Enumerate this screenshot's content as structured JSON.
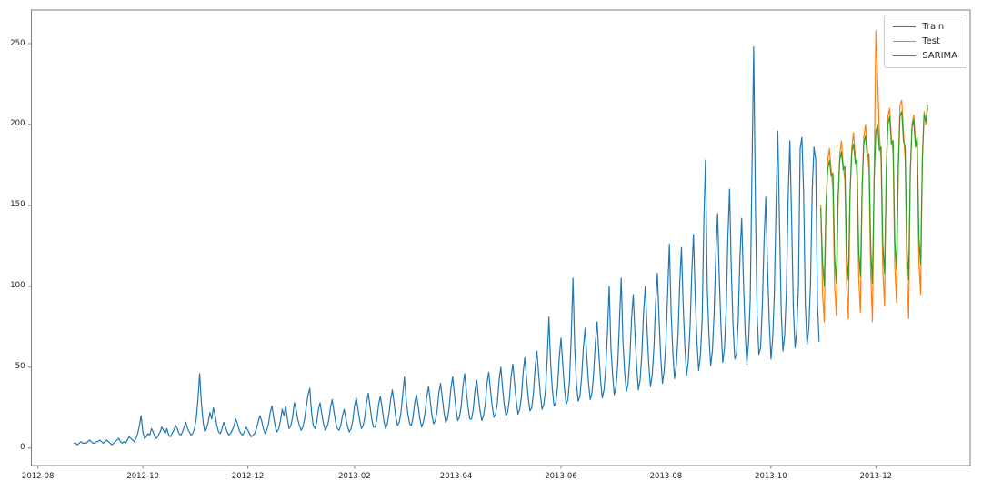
{
  "figure": {
    "background": "#ffffff",
    "axis_color": "#808080",
    "tick_text_color": "#262626"
  },
  "chart_data": {
    "type": "line",
    "title": "",
    "xlabel": "",
    "ylabel": "",
    "grid": false,
    "legend_position": "upper right",
    "x_start_date": "2012-08-22",
    "x_unit": "days",
    "ylim_ticks": [
      0,
      250
    ],
    "y_ticks": [
      {
        "label": "0",
        "value": 0
      },
      {
        "label": "50",
        "value": 50
      },
      {
        "label": "100",
        "value": 100
      },
      {
        "label": "150",
        "value": 150
      },
      {
        "label": "200",
        "value": 200
      },
      {
        "label": "250",
        "value": 250
      }
    ],
    "x_ticks": [
      {
        "label": "2012-08",
        "day": -21
      },
      {
        "label": "2012-10",
        "day": 40
      },
      {
        "label": "2012-12",
        "day": 101
      },
      {
        "label": "2013-02",
        "day": 163
      },
      {
        "label": "2013-04",
        "day": 222
      },
      {
        "label": "2013-06",
        "day": 283
      },
      {
        "label": "2013-08",
        "day": 344
      },
      {
        "label": "2013-10",
        "day": 405
      },
      {
        "label": "2013-12",
        "day": 466
      }
    ],
    "series": [
      {
        "name": "Train",
        "color": "#1f77b4",
        "start_day": 0,
        "start_date": "2012-08-22",
        "values": [
          3,
          3,
          2,
          3,
          4,
          3,
          3,
          3,
          4,
          5,
          4,
          3,
          3,
          4,
          4,
          5,
          4,
          3,
          4,
          5,
          4,
          3,
          2,
          3,
          4,
          5,
          6,
          4,
          3,
          4,
          3,
          5,
          7,
          6,
          5,
          4,
          6,
          9,
          14,
          20,
          10,
          6,
          7,
          9,
          8,
          12,
          10,
          7,
          6,
          8,
          10,
          13,
          11,
          9,
          12,
          8,
          7,
          9,
          11,
          14,
          12,
          9,
          8,
          10,
          13,
          16,
          12,
          10,
          8,
          9,
          12,
          18,
          30,
          46,
          28,
          16,
          10,
          12,
          16,
          22,
          18,
          25,
          20,
          14,
          10,
          9,
          12,
          16,
          13,
          10,
          8,
          9,
          11,
          14,
          18,
          15,
          11,
          9,
          8,
          10,
          13,
          11,
          9,
          7,
          8,
          9,
          12,
          16,
          20,
          17,
          12,
          9,
          11,
          15,
          22,
          26,
          19,
          13,
          10,
          12,
          17,
          24,
          20,
          26,
          18,
          12,
          14,
          19,
          28,
          24,
          18,
          14,
          11,
          13,
          18,
          26,
          33,
          37,
          22,
          14,
          12,
          16,
          24,
          28,
          21,
          15,
          11,
          13,
          17,
          25,
          30,
          23,
          16,
          12,
          11,
          14,
          20,
          24,
          18,
          13,
          10,
          12,
          17,
          26,
          31,
          24,
          17,
          12,
          14,
          19,
          28,
          34,
          26,
          18,
          13,
          13,
          18,
          27,
          32,
          25,
          17,
          12,
          15,
          21,
          30,
          36,
          28,
          19,
          14,
          16,
          22,
          33,
          44,
          30,
          21,
          15,
          14,
          19,
          28,
          33,
          26,
          18,
          13,
          16,
          22,
          32,
          38,
          29,
          20,
          15,
          17,
          23,
          34,
          40,
          31,
          22,
          16,
          18,
          25,
          37,
          44,
          34,
          24,
          17,
          19,
          26,
          38,
          46,
          35,
          25,
          18,
          18,
          24,
          36,
          42,
          32,
          23,
          17,
          20,
          27,
          40,
          47,
          36,
          26,
          19,
          21,
          28,
          42,
          50,
          38,
          27,
          20,
          22,
          30,
          44,
          52,
          40,
          29,
          21,
          24,
          32,
          47,
          56,
          43,
          31,
          23,
          25,
          34,
          50,
          60,
          46,
          33,
          24,
          27,
          36,
          55,
          81,
          52,
          36,
          26,
          28,
          38,
          56,
          68,
          52,
          37,
          27,
          30,
          42,
          70,
          105,
          62,
          40,
          29,
          32,
          44,
          62,
          74,
          56,
          40,
          30,
          34,
          46,
          65,
          78,
          59,
          42,
          31,
          36,
          49,
          72,
          100,
          62,
          45,
          33,
          38,
          52,
          78,
          105,
          66,
          47,
          35,
          40,
          55,
          80,
          95,
          70,
          50,
          36,
          42,
          58,
          84,
          100,
          74,
          52,
          38,
          45,
          62,
          90,
          108,
          79,
          56,
          40,
          48,
          66,
          96,
          126,
          84,
          59,
          43,
          51,
          70,
          102,
          124,
          89,
          63,
          45,
          54,
          74,
          108,
          132,
          94,
          66,
          48,
          57,
          79,
          140,
          178,
          100,
          70,
          51,
          60,
          83,
          120,
          145,
          105,
          74,
          53,
          62,
          86,
          130,
          160,
          110,
          76,
          55,
          58,
          80,
          118,
          142,
          104,
          72,
          52,
          66,
          92,
          170,
          248,
          150,
          82,
          58,
          62,
          88,
          128,
          155,
          112,
          78,
          55,
          68,
          95,
          150,
          196,
          138,
          84,
          60,
          70,
          98,
          155,
          190,
          142,
          86,
          62,
          72,
          100,
          185,
          192,
          158,
          88,
          64,
          74,
          102,
          160,
          186,
          178,
          90,
          66
        ]
      },
      {
        "name": "Test",
        "color": "#ff7f0e",
        "start_day": 434,
        "start_date": "2013-10-30",
        "values": [
          150,
          96,
          78,
          148,
          178,
          185,
          172,
          160,
          100,
          82,
          152,
          182,
          190,
          175,
          165,
          102,
          80,
          158,
          186,
          195,
          180,
          168,
          105,
          84,
          162,
          192,
          200,
          185,
          172,
          108,
          78,
          170,
          258,
          228,
          195,
          178,
          110,
          88,
          172,
          205,
          210,
          192,
          182,
          112,
          90,
          175,
          212,
          215,
          196,
          178,
          108,
          80,
          170,
          200,
          206,
          190,
          185,
          115,
          95,
          180,
          208,
          200,
          210
        ]
      },
      {
        "name": "SARIMA",
        "color": "#2ca02c",
        "start_day": 434,
        "start_date": "2013-10-30",
        "values": [
          148,
          116,
          100,
          150,
          172,
          178,
          168,
          170,
          118,
          102,
          155,
          178,
          183,
          172,
          174,
          120,
          104,
          158,
          183,
          188,
          176,
          178,
          122,
          106,
          162,
          188,
          193,
          180,
          182,
          124,
          102,
          166,
          196,
          200,
          184,
          186,
          126,
          108,
          170,
          200,
          205,
          188,
          190,
          128,
          110,
          172,
          205,
          208,
          190,
          186,
          124,
          104,
          170,
          198,
          203,
          186,
          192,
          130,
          114,
          178,
          206,
          202,
          212
        ]
      }
    ]
  }
}
